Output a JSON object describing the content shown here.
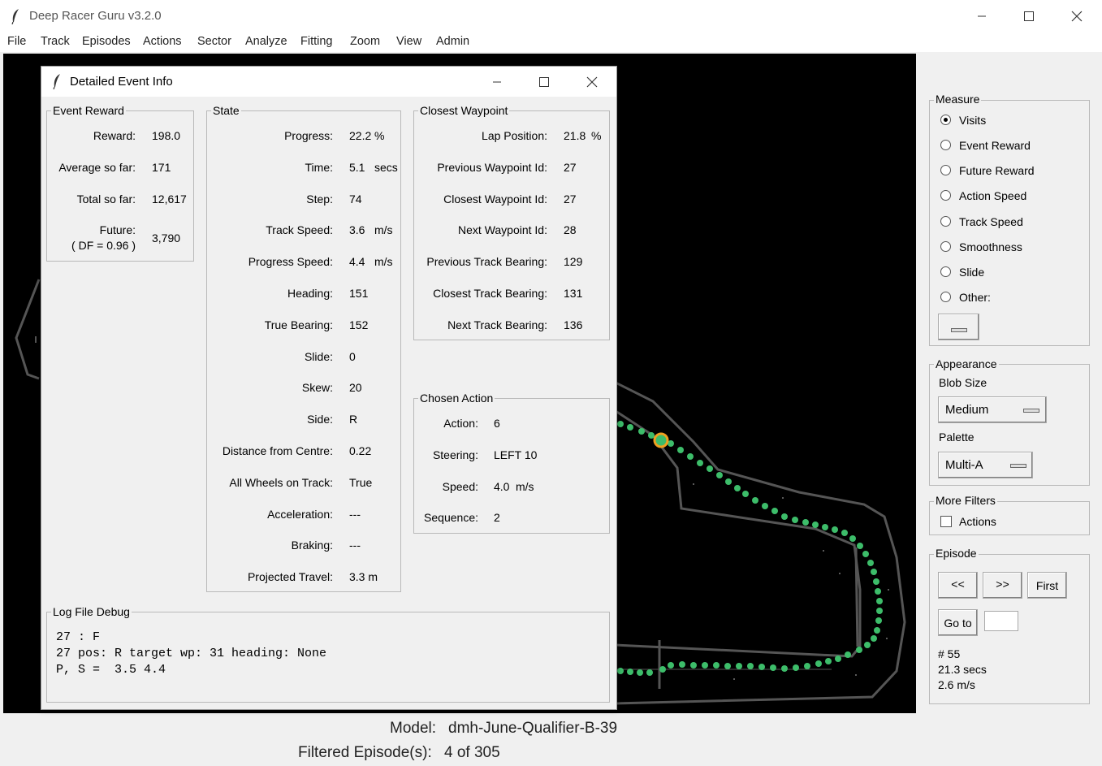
{
  "window": {
    "title": "Deep Racer Guru v3.2.0"
  },
  "menu": [
    "File",
    "Track",
    "Episodes",
    "Actions",
    "Sector",
    "Analyze",
    "Fitting",
    "Zoom",
    "View",
    "Admin"
  ],
  "measure": {
    "label": "Measure",
    "options": [
      "Visits",
      "Event Reward",
      "Future Reward",
      "Action Speed",
      "Track Speed",
      "Smoothness",
      "Slide",
      "Other:"
    ],
    "selected": "Visits"
  },
  "appearance": {
    "label": "Appearance",
    "blob_size_label": "Blob Size",
    "blob_size_value": "Medium",
    "palette_label": "Palette",
    "palette_value": "Multi-A"
  },
  "more_filters": {
    "label": "More Filters",
    "actions_label": "Actions"
  },
  "episode": {
    "label": "Episode",
    "prev": "<<",
    "next": ">>",
    "first": "First",
    "goto": "Go to",
    "number": "# 55",
    "time": "21.3 secs",
    "speed": "2.6 m/s"
  },
  "status": {
    "model_label": "Model:",
    "model_value": "dmh-June-Qualifier-B-39",
    "filtered_label": "Filtered Episode(s):",
    "filtered_value": "4 of 305"
  },
  "dialog": {
    "title": "Detailed Event Info",
    "event_reward": {
      "label": "Event Reward",
      "reward_label": "Reward:",
      "reward": "198.0",
      "avg_label": "Average so far:",
      "avg": "171",
      "total_label": "Total so far:",
      "total": "12,617",
      "future_label": "Future:",
      "future_df": "( DF = 0.96 )",
      "future": "3,790"
    },
    "state": {
      "label": "State",
      "rows": [
        {
          "label": "Progress:",
          "value": "22.2",
          "unit": "%"
        },
        {
          "label": "Time:",
          "value": "5.1",
          "unit": "secs"
        },
        {
          "label": "Step:",
          "value": "74",
          "unit": ""
        },
        {
          "label": "Track Speed:",
          "value": "3.6",
          "unit": "m/s"
        },
        {
          "label": "Progress Speed:",
          "value": "4.4",
          "unit": "m/s"
        },
        {
          "label": "Heading:",
          "value": "151",
          "unit": ""
        },
        {
          "label": "True Bearing:",
          "value": "152",
          "unit": ""
        },
        {
          "label": "Slide:",
          "value": "0",
          "unit": ""
        },
        {
          "label": "Skew:",
          "value": "20",
          "unit": ""
        },
        {
          "label": "Side:",
          "value": "R",
          "unit": ""
        },
        {
          "label": "Distance from Centre:",
          "value": "0.22",
          "unit": ""
        },
        {
          "label": "All Wheels on Track:",
          "value": "True",
          "unit": ""
        },
        {
          "label": "Acceleration:",
          "value": "---",
          "unit": ""
        },
        {
          "label": "Braking:",
          "value": "---",
          "unit": ""
        },
        {
          "label": "Projected Travel:",
          "value": "3.3 m",
          "unit": ""
        }
      ]
    },
    "closest_waypoint": {
      "label": "Closest Waypoint",
      "rows": [
        {
          "label": "Lap Position:",
          "value": "21.8",
          "unit": "%"
        },
        {
          "label": "Previous Waypoint Id:",
          "value": "27",
          "unit": ""
        },
        {
          "label": "Closest Waypoint Id:",
          "value": "27",
          "unit": ""
        },
        {
          "label": "Next Waypoint Id:",
          "value": "28",
          "unit": ""
        },
        {
          "label": "Previous Track Bearing:",
          "value": "129",
          "unit": ""
        },
        {
          "label": "Closest Track Bearing:",
          "value": "131",
          "unit": ""
        },
        {
          "label": "Next Track Bearing:",
          "value": "136",
          "unit": ""
        }
      ]
    },
    "chosen_action": {
      "label": "Chosen Action",
      "rows": [
        {
          "label": "Action:",
          "value": "6",
          "unit": ""
        },
        {
          "label": "Steering:",
          "value": "LEFT 10",
          "unit": ""
        },
        {
          "label": "Speed:",
          "value": "4.0",
          "unit": "m/s"
        },
        {
          "label": "Sequence:",
          "value": "2",
          "unit": ""
        }
      ]
    },
    "log": {
      "label": "Log File Debug",
      "lines": [
        "27 : F",
        "27 pos: R target wp: 31 heading: None",
        "P, S =  3.5 4.4"
      ]
    }
  }
}
